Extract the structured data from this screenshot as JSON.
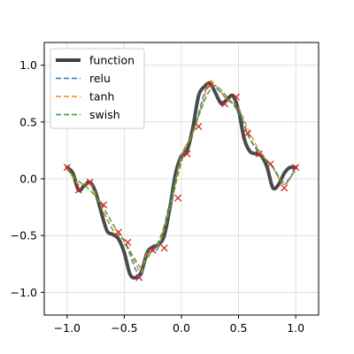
{
  "chart_data": {
    "type": "line",
    "title": "",
    "xlabel": "",
    "ylabel": "",
    "xlim": [
      -1.2,
      1.2
    ],
    "ylim": [
      -1.2,
      1.2
    ],
    "grid": true,
    "legend_position": "top-left",
    "x_ticks": [
      -1.0,
      -0.5,
      0.0,
      0.5,
      1.0
    ],
    "x_tick_labels": [
      "−1.0",
      "−0.5",
      "0.0",
      "0.5",
      "1.0"
    ],
    "y_ticks": [
      1.0,
      0.5,
      0.0,
      -0.5,
      -1.0
    ],
    "y_tick_labels": [
      "1.0",
      "0.5",
      "0.0",
      "−0.5",
      "−1.0"
    ],
    "colors": {
      "function": "#404040",
      "relu": "#1f77b4",
      "tanh": "#ff7f0e",
      "swish": "#2ca02c",
      "samples": "#d62728",
      "grid": "#d9d9d9",
      "axes": "#000000"
    },
    "legend": [
      {
        "key": "function",
        "label": "function"
      },
      {
        "key": "relu",
        "label": "relu"
      },
      {
        "key": "tanh",
        "label": "tanh"
      },
      {
        "key": "swish",
        "label": "swish"
      }
    ],
    "series": [
      {
        "name": "function",
        "style": "solid",
        "x": [
          -1.0,
          -0.95,
          -0.9,
          -0.85,
          -0.8,
          -0.75,
          -0.7,
          -0.65,
          -0.6,
          -0.55,
          -0.5,
          -0.45,
          -0.4,
          -0.35,
          -0.3,
          -0.25,
          -0.2,
          -0.15,
          -0.1,
          -0.05,
          0.0,
          0.05,
          0.1,
          0.15,
          0.2,
          0.25,
          0.3,
          0.35,
          0.4,
          0.45,
          0.5,
          0.55,
          0.6,
          0.65,
          0.7,
          0.75,
          0.8,
          0.85,
          0.9,
          0.95,
          1.0
        ],
        "y": [
          0.1,
          0.05,
          -0.1,
          -0.06,
          -0.03,
          -0.12,
          -0.3,
          -0.46,
          -0.49,
          -0.53,
          -0.65,
          -0.84,
          -0.87,
          -0.82,
          -0.65,
          -0.6,
          -0.58,
          -0.5,
          -0.25,
          0.05,
          0.2,
          0.25,
          0.45,
          0.73,
          0.81,
          0.84,
          0.75,
          0.66,
          0.7,
          0.73,
          0.6,
          0.35,
          0.24,
          0.22,
          0.2,
          0.1,
          -0.08,
          -0.05,
          0.05,
          0.1,
          0.1
        ]
      },
      {
        "name": "relu",
        "style": "dashed",
        "x": [
          -1.0,
          -0.9,
          -0.8,
          -0.7,
          -0.6,
          -0.5,
          -0.4,
          -0.35,
          -0.3,
          -0.2,
          -0.1,
          0.0,
          0.1,
          0.2,
          0.25,
          0.3,
          0.4,
          0.5,
          0.6,
          0.7,
          0.8,
          0.9,
          1.0
        ],
        "y": [
          0.1,
          -0.05,
          -0.05,
          -0.25,
          -0.45,
          -0.55,
          -0.8,
          -0.86,
          -0.65,
          -0.6,
          -0.2,
          0.2,
          0.4,
          0.75,
          0.82,
          0.8,
          0.7,
          0.6,
          0.35,
          0.22,
          0.1,
          -0.05,
          0.1
        ]
      },
      {
        "name": "tanh",
        "style": "dashed",
        "x": [
          -1.0,
          -0.9,
          -0.8,
          -0.7,
          -0.6,
          -0.5,
          -0.4,
          -0.35,
          -0.3,
          -0.2,
          -0.1,
          0.0,
          0.1,
          0.2,
          0.25,
          0.3,
          0.4,
          0.5,
          0.6,
          0.7,
          0.8,
          0.9,
          1.0
        ],
        "y": [
          0.1,
          -0.05,
          -0.05,
          -0.25,
          -0.45,
          -0.55,
          -0.75,
          -0.82,
          -0.65,
          -0.58,
          -0.25,
          0.2,
          0.4,
          0.72,
          0.86,
          0.82,
          0.7,
          0.62,
          0.4,
          0.22,
          0.1,
          -0.05,
          0.1
        ]
      },
      {
        "name": "swish",
        "style": "dashed",
        "x": [
          -1.0,
          -0.9,
          -0.8,
          -0.7,
          -0.6,
          -0.5,
          -0.4,
          -0.35,
          -0.3,
          -0.2,
          -0.1,
          0.0,
          0.1,
          0.2,
          0.25,
          0.3,
          0.4,
          0.5,
          0.6,
          0.7,
          0.8,
          0.9,
          1.0
        ],
        "y": [
          0.08,
          -0.02,
          -0.1,
          -0.22,
          -0.4,
          -0.55,
          -0.72,
          -0.78,
          -0.7,
          -0.55,
          -0.25,
          0.15,
          0.42,
          0.68,
          0.78,
          0.82,
          0.72,
          0.58,
          0.35,
          0.2,
          0.1,
          -0.03,
          0.08
        ]
      },
      {
        "name": "samples",
        "style": "markers",
        "x": [
          -1.0,
          -0.9,
          -0.8,
          -0.68,
          -0.55,
          -0.47,
          -0.37,
          -0.25,
          -0.15,
          -0.03,
          0.05,
          0.15,
          0.25,
          0.38,
          0.48,
          0.58,
          0.68,
          0.78,
          0.9,
          1.0
        ],
        "y": [
          0.1,
          -0.1,
          -0.03,
          -0.23,
          -0.47,
          -0.56,
          -0.87,
          -0.63,
          -0.61,
          -0.17,
          0.22,
          0.46,
          0.82,
          0.66,
          0.72,
          0.4,
          0.22,
          0.13,
          -0.08,
          0.1
        ]
      }
    ]
  }
}
